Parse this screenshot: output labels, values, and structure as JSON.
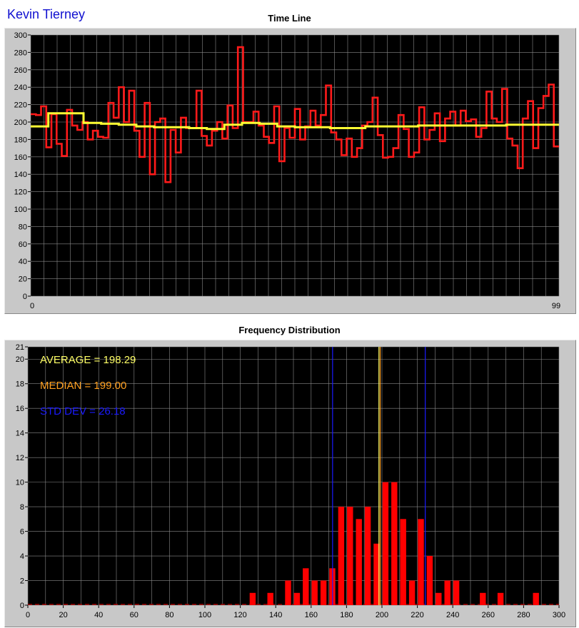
{
  "header": {
    "user_name": "Kevin Tierney"
  },
  "colors": {
    "plot_bg": "#000000",
    "grid": "#8a8a8a",
    "raw": "#ff1a1a",
    "average": "#ffff33",
    "median": "#ffa020",
    "std": "#1a1aff",
    "bars": "#ff0000"
  },
  "chart_data": [
    {
      "type": "line",
      "title": "Time Line",
      "xlim": [
        0,
        99
      ],
      "ylim": [
        0,
        300
      ],
      "x_tick_labels": [
        "0",
        "99"
      ],
      "y_ticks": [
        0,
        20,
        40,
        60,
        80,
        100,
        120,
        140,
        160,
        180,
        200,
        220,
        240,
        260,
        280,
        300
      ],
      "series": [
        {
          "style": "step",
          "color": "#ff1a1a",
          "values": [
            209,
            208,
            218,
            171,
            209,
            175,
            161,
            214,
            196,
            191,
            200,
            180,
            190,
            183,
            182,
            222,
            205,
            240,
            200,
            236,
            190,
            160,
            222,
            140,
            200,
            204,
            131,
            191,
            165,
            205,
            193,
            193,
            236,
            184,
            173,
            190,
            200,
            181,
            219,
            193,
            286,
            200,
            200,
            212,
            196,
            183,
            176,
            218,
            155,
            193,
            182,
            215,
            180,
            195,
            213,
            196,
            208,
            242,
            188,
            180,
            162,
            181,
            160,
            170,
            196,
            200,
            228,
            185,
            159,
            160,
            170,
            208,
            192,
            160,
            165,
            217,
            180,
            191,
            210,
            178,
            204,
            212,
            196,
            213,
            201,
            203,
            183,
            193,
            235,
            204,
            200,
            238,
            181,
            173,
            147,
            204,
            224,
            170,
            216,
            230,
            243,
            172
          ]
        },
        {
          "style": "step",
          "color": "#ffff33",
          "values": [
            195,
            210,
            210,
            199,
            198,
            197,
            195,
            194,
            194,
            193,
            192,
            197,
            199,
            198,
            195,
            194,
            194,
            193,
            193,
            195,
            195,
            195,
            196,
            196,
            196,
            196,
            196,
            197,
            197,
            197
          ]
        }
      ]
    },
    {
      "type": "bar",
      "title": "Frequency Distribution",
      "xlim": [
        0,
        300
      ],
      "ylim": [
        0,
        21
      ],
      "x_ticks": [
        0,
        20,
        40,
        60,
        80,
        100,
        120,
        140,
        160,
        180,
        200,
        220,
        240,
        260,
        280,
        300
      ],
      "y_ticks": [
        0,
        2,
        4,
        6,
        8,
        10,
        12,
        14,
        16,
        18,
        20,
        21
      ],
      "x": [
        127,
        137,
        147,
        152,
        157,
        162,
        167,
        172,
        177,
        182,
        187,
        192,
        197,
        202,
        207,
        212,
        217,
        222,
        227,
        232,
        237,
        242,
        257,
        267,
        287
      ],
      "values": [
        1,
        1,
        2,
        1,
        3,
        2,
        2,
        3,
        8,
        8,
        7,
        8,
        5,
        10,
        10,
        7,
        2,
        7,
        4,
        1,
        2,
        2,
        1,
        1,
        1
      ],
      "annotations": [
        {
          "text": "AVERAGE = 198.29",
          "color": "#ffff66"
        },
        {
          "text": "MEDIAN = 199.00",
          "color": "#ffa020"
        },
        {
          "text": "STD DEV = 26.18",
          "color": "#1a1aff"
        }
      ],
      "reference_lines": [
        {
          "x": 198.29,
          "color": "#ffff66"
        },
        {
          "x": 199.0,
          "color": "#ffa020"
        },
        {
          "x": 172.11,
          "color": "#1a1aff"
        },
        {
          "x": 224.47,
          "color": "#1a1aff"
        }
      ]
    }
  ]
}
